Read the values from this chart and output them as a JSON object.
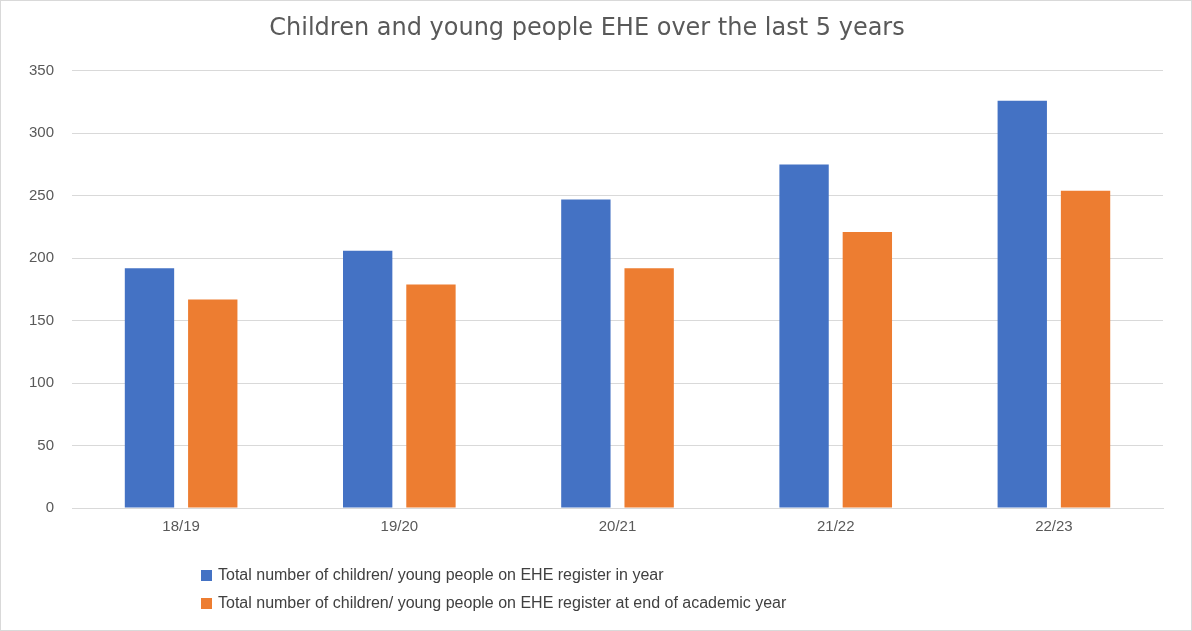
{
  "chart_data": {
    "type": "bar",
    "title": "Children and young people EHE over the last 5 years",
    "categories": [
      "18/19",
      "19/20",
      "20/21",
      "21/22",
      "22/23"
    ],
    "series": [
      {
        "name": "Total number of children/ young people on EHE register in year",
        "color": "#4472c4",
        "values": [
          192,
          206,
          247,
          275,
          326
        ]
      },
      {
        "name": "Total number of children/ young people on EHE register at end of academic year",
        "color": "#ed7d31",
        "values": [
          167,
          179,
          192,
          221,
          254
        ]
      }
    ],
    "ylim": [
      0,
      350
    ],
    "yticks": [
      0,
      50,
      100,
      150,
      200,
      250,
      300,
      350
    ],
    "grid": "y",
    "legend": "bottom"
  }
}
